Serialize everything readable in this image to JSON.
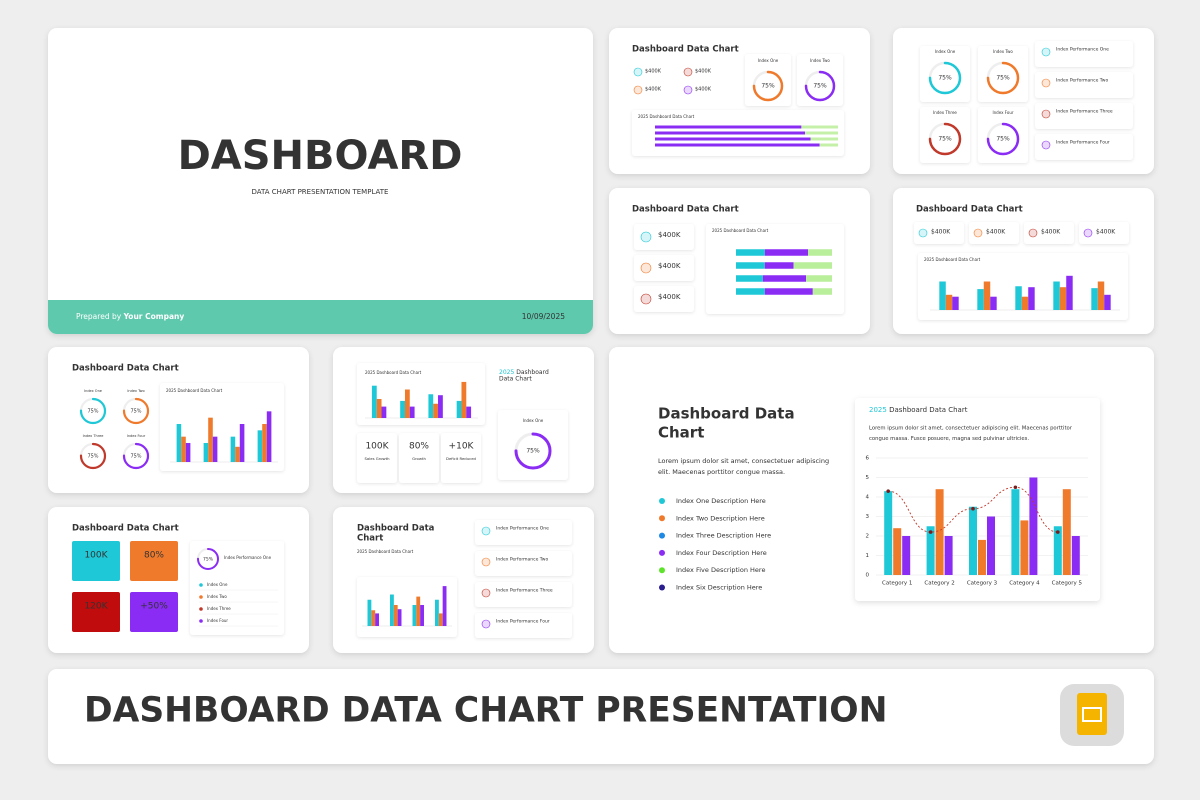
{
  "cover": {
    "title": "DASHBOARD",
    "subtitle": "DATA CHART PRESENTATION TEMPLATE",
    "prepared_prefix": "Prepared by",
    "company": "Your Company",
    "date": "10/09/2025"
  },
  "banner": {
    "title": "DASHBOARD DATA CHART PRESENTATION"
  },
  "main_slide": {
    "title_lines": [
      "Dashboard Data",
      "Chart"
    ],
    "body_lines": [
      "Lorem ipsum dolor sit amet, consectetuer adipiscing",
      "elit. Maecenas porttitor congue massa."
    ],
    "legend": [
      {
        "label": "Index One Description Here",
        "color": "#1ec8d6"
      },
      {
        "label": "Index Two Description Here",
        "color": "#f07a2c"
      },
      {
        "label": "Index Three Description Here",
        "color": "#1e88e5"
      },
      {
        "label": "Index Four Description Here",
        "color": "#8b2cf5"
      },
      {
        "label": "Index Five Description Here",
        "color": "#5de42a"
      },
      {
        "label": "Index Six Description Here",
        "color": "#2b1f8f"
      }
    ],
    "card_year": "2025",
    "card_title": "Dashboard Data Chart",
    "card_text_lines": [
      "Lorem ipsum dolor sit amet, consectetuer adipiscing elit. Maecenas porttitor",
      "congue massa. Fusce posuere, magna sed pulvinar ultricies."
    ],
    "chart": {
      "type": "bar",
      "categories": [
        "Category 1",
        "Category 2",
        "Category 3",
        "Category 4",
        "Category 5"
      ],
      "series": [
        {
          "color": "#1ec8d6",
          "values": [
            4.3,
            2.5,
            3.5,
            4.4,
            2.5
          ]
        },
        {
          "color": "#f07a2c",
          "values": [
            2.4,
            4.4,
            1.8,
            2.8,
            4.4
          ]
        },
        {
          "color": "#8b2cf5",
          "values": [
            2.0,
            2.0,
            3.0,
            5.0,
            2.0
          ]
        },
        {
          "type": "line",
          "color": "#c0392b",
          "values": [
            4.3,
            2.2,
            3.4,
            4.5,
            2.2
          ]
        }
      ],
      "ylim": [
        0,
        6
      ],
      "yticks": [
        0,
        1,
        2,
        3,
        4,
        5,
        6
      ],
      "grid": true
    }
  },
  "thumbnails": {
    "a": {
      "title": "Dashboard Data Chart",
      "stats": [
        {
          "value": "$400K",
          "color": "#1ec8d6"
        },
        {
          "value": "$400K",
          "color": "#c0392b"
        },
        {
          "value": "$400K",
          "color": "#f07a2c"
        },
        {
          "value": "$400K",
          "color": "#8b2cf5"
        }
      ],
      "gauges": [
        {
          "label": "Index One",
          "value": 75,
          "value_label": "75%",
          "color": "#f07a2c"
        },
        {
          "label": "Index Two",
          "value": 75,
          "value_label": "75%",
          "color": "#8b2cf5"
        }
      ],
      "chart": {
        "title": "2025 Dashboard Data Chart",
        "xlim": [
          0,
          100
        ],
        "series": [
          {
            "color": "#8b2cf5",
            "values": [
              80,
              82,
              85,
              90
            ]
          },
          {
            "color": "#c5f0a8",
            "values": [
              20,
              18,
              15,
              10
            ]
          }
        ]
      }
    },
    "b": {
      "gauges": [
        {
          "label": "Index One",
          "value": 75,
          "value_label": "75%",
          "color": "#1ec8d6"
        },
        {
          "label": "Index Two",
          "value": 75,
          "value_label": "75%",
          "color": "#f07a2c"
        },
        {
          "label": "Index Three",
          "value": 75,
          "value_label": "75%",
          "color": "#c0392b"
        },
        {
          "label": "Index Four",
          "value": 75,
          "value_label": "75%",
          "color": "#8b2cf5"
        }
      ],
      "list": [
        {
          "label": "Index Performance One",
          "color": "#1ec8d6"
        },
        {
          "label": "Index Performance Two",
          "color": "#f07a2c"
        },
        {
          "label": "Index Performance Three",
          "color": "#c0392b"
        },
        {
          "label": "Index Performance Four",
          "color": "#8b2cf5"
        }
      ]
    },
    "c": {
      "title": "Dashboard Data Chart",
      "stats": [
        {
          "value": "$400K",
          "color": "#1ec8d6"
        },
        {
          "value": "$400K",
          "color": "#f07a2c"
        },
        {
          "value": "$400K",
          "color": "#c0392b"
        }
      ],
      "chart": {
        "title": "2025 Dashboard Data Chart",
        "xlim": [
          0,
          100
        ],
        "series": [
          {
            "color": "#1ec8d6",
            "values": [
              30,
              30,
              28,
              30
            ]
          },
          {
            "color": "#8b2cf5",
            "values": [
              45,
              30,
              45,
              50
            ]
          },
          {
            "color": "#b9ef9a",
            "values": [
              25,
              40,
              27,
              20
            ]
          }
        ]
      }
    },
    "d": {
      "title": "Dashboard Data Chart",
      "stats": [
        {
          "value": "$400K",
          "color": "#1ec8d6"
        },
        {
          "value": "$400K",
          "color": "#f07a2c"
        },
        {
          "value": "$400K",
          "color": "#c0392b"
        },
        {
          "value": "$400K",
          "color": "#8b2cf5"
        }
      ],
      "chart": {
        "title": "2025 Dashboard Data Chart",
        "ylim": [
          0,
          4
        ],
        "series": [
          {
            "color": "#1ec8d6",
            "values": [
              3,
              2.2,
              2.5,
              3,
              2.3
            ]
          },
          {
            "color": "#f07a2c",
            "values": [
              1.6,
              3,
              1.4,
              2.4,
              3
            ]
          },
          {
            "color": "#8b2cf5",
            "values": [
              1.4,
              1.4,
              2.4,
              3.6,
              1.6
            ]
          }
        ]
      }
    },
    "e": {
      "title": "Dashboard Data Chart",
      "gauges": [
        {
          "label": "Index One",
          "value": 75,
          "value_label": "75%",
          "color": "#1ec8d6"
        },
        {
          "label": "Index Two",
          "value": 75,
          "value_label": "75%",
          "color": "#f07a2c"
        },
        {
          "label": "Index Three",
          "value": 75,
          "value_label": "75%",
          "color": "#c0392b"
        },
        {
          "label": "Index Four",
          "value": 75,
          "value_label": "75%",
          "color": "#8b2cf5"
        }
      ],
      "chart": {
        "title": "2025 Dashboard Data Chart",
        "ylim": [
          0,
          4.5
        ],
        "series": [
          {
            "color": "#1ec8d6",
            "values": [
              3,
              1.5,
              2,
              2.5
            ]
          },
          {
            "color": "#f07a2c",
            "values": [
              2,
              3.5,
              1.2,
              3
            ]
          },
          {
            "color": "#8b2cf5",
            "values": [
              1.5,
              2,
              3,
              4
            ]
          }
        ]
      }
    },
    "f": {
      "chart": {
        "title": "2025 Dashboard Data Chart",
        "ylim": [
          0,
          4
        ],
        "series": [
          {
            "color": "#1ec8d6",
            "values": [
              3.4,
              1.8,
              2.5,
              1.8
            ]
          },
          {
            "color": "#f07a2c",
            "values": [
              2,
              3,
              1.5,
              3.8
            ]
          },
          {
            "color": "#8b2cf5",
            "values": [
              1.2,
              1.2,
              2.4,
              1.2
            ]
          }
        ]
      },
      "stats": [
        {
          "value": "100K",
          "label": "Sales Growth",
          "color": "#1ec8d6"
        },
        {
          "value": "80%",
          "label": "Growth",
          "color": "#f07a2c"
        },
        {
          "value": "+10K",
          "label": "Deficit Reduced",
          "color": "#c0392b"
        }
      ],
      "side_year": "2025",
      "side_title_lines": [
        "Dashboard",
        "Data Chart"
      ],
      "gauge": {
        "label": "Index One",
        "value": 75,
        "value_label": "75%",
        "color": "#8b2cf5"
      }
    },
    "g": {
      "title": "Dashboard Data Chart",
      "tiles": [
        {
          "value": "100K",
          "color": "#1ec8d6"
        },
        {
          "value": "80%",
          "color": "#f07a2c"
        },
        {
          "value": "120K",
          "color": "#c00c0c"
        },
        {
          "value": "+50%",
          "color": "#8b2cf5"
        }
      ],
      "gauge": {
        "label": "Index Performance One",
        "value": 75,
        "value_label": "75%",
        "color": "#8b2cf5"
      },
      "list": [
        {
          "label": "Index One",
          "color": "#1ec8d6"
        },
        {
          "label": "Index Two",
          "color": "#f07a2c"
        },
        {
          "label": "Index Three",
          "color": "#c0392b"
        },
        {
          "label": "Index Four",
          "color": "#8b2cf5"
        }
      ]
    },
    "h": {
      "title_lines": [
        "Dashboard Data",
        "Chart"
      ],
      "chart": {
        "title": "2025 Dashboard Data Chart",
        "ylim": [
          0,
          4
        ],
        "series": [
          {
            "color": "#1ec8d6",
            "values": [
              2.5,
              3,
              2,
              2.5
            ]
          },
          {
            "color": "#f07a2c",
            "values": [
              1.5,
              2,
              2.8,
              1.2
            ]
          },
          {
            "color": "#8b2cf5",
            "values": [
              1.2,
              1.6,
              2,
              3.8
            ]
          }
        ]
      },
      "list": [
        {
          "label": "Index Performance One",
          "color": "#1ec8d6"
        },
        {
          "label": "Index Performance Two",
          "color": "#f07a2c"
        },
        {
          "label": "Index Performance Three",
          "color": "#c0392b"
        },
        {
          "label": "Index Performance Four",
          "color": "#8b2cf5"
        }
      ]
    }
  }
}
